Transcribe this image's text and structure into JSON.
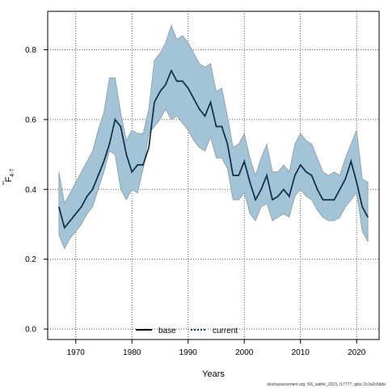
{
  "chart_data": {
    "type": "line",
    "title": "",
    "xlabel": "Years",
    "ylabel": "F",
    "ylabel_subscript": "4-7",
    "xlim": [
      1965,
      2024
    ],
    "ylim": [
      -0.03,
      0.91
    ],
    "x_ticks": [
      1970,
      1980,
      1990,
      2000,
      2010,
      2020
    ],
    "y_ticks": [
      0.0,
      0.2,
      0.4,
      0.6,
      0.8
    ],
    "y_tick_labels": [
      "0.0",
      "0.2",
      "0.4",
      "0.6",
      "0.8"
    ],
    "grid": true,
    "legend_placement": "bottom-center",
    "x": [
      1967,
      1968,
      1969,
      1970,
      1971,
      1972,
      1973,
      1974,
      1975,
      1976,
      1977,
      1978,
      1979,
      1980,
      1981,
      1982,
      1983,
      1984,
      1985,
      1986,
      1987,
      1988,
      1989,
      1990,
      1991,
      1992,
      1993,
      1994,
      1995,
      1996,
      1997,
      1998,
      1999,
      2000,
      2001,
      2002,
      2003,
      2004,
      2005,
      2006,
      2007,
      2008,
      2009,
      2010,
      2011,
      2012,
      2013,
      2014,
      2015,
      2016,
      2017,
      2018,
      2019,
      2020,
      2021,
      2022
    ],
    "series": [
      {
        "name": "base",
        "style": "solid",
        "color": "#000000",
        "values": [
          0.35,
          0.29,
          0.31,
          0.33,
          0.35,
          0.38,
          0.4,
          0.44,
          0.48,
          0.53,
          0.6,
          0.58,
          0.5,
          0.45,
          0.47,
          0.47,
          0.52,
          0.65,
          0.68,
          0.7,
          0.74,
          0.71,
          0.71,
          0.69,
          0.66,
          0.63,
          0.61,
          0.65,
          0.58,
          0.58,
          0.53,
          0.44,
          0.44,
          0.48,
          0.42,
          0.37,
          0.4,
          0.44,
          0.37,
          0.38,
          0.4,
          0.38,
          0.44,
          0.47,
          0.45,
          0.44,
          0.4,
          0.37,
          0.37,
          0.37,
          0.4,
          0.43,
          0.48,
          0.42,
          0.35,
          0.32
        ]
      },
      {
        "name": "current",
        "style": "dotted",
        "color": "#0b4a73",
        "values": [
          0.35,
          0.29,
          0.31,
          0.33,
          0.35,
          0.38,
          0.4,
          0.44,
          0.48,
          0.53,
          0.6,
          0.58,
          0.5,
          0.45,
          0.47,
          0.47,
          0.52,
          0.65,
          0.68,
          0.7,
          0.74,
          0.71,
          0.71,
          0.69,
          0.66,
          0.63,
          0.61,
          0.65,
          0.58,
          0.58,
          0.53,
          0.44,
          0.44,
          0.48,
          0.42,
          0.37,
          0.4,
          0.44,
          0.37,
          0.38,
          0.4,
          0.38,
          0.44,
          0.47,
          0.45,
          0.44,
          0.4,
          0.37,
          0.37,
          0.37,
          0.4,
          0.43,
          0.48,
          0.42,
          0.35,
          0.32
        ]
      }
    ],
    "confidence_band": {
      "color": "#a3c3d6",
      "edge_color": "#8a9aa6",
      "upper": [
        0.45,
        0.36,
        0.39,
        0.42,
        0.45,
        0.48,
        0.51,
        0.57,
        0.62,
        0.72,
        0.72,
        0.62,
        0.54,
        0.57,
        0.56,
        0.56,
        0.63,
        0.77,
        0.79,
        0.82,
        0.87,
        0.83,
        0.84,
        0.82,
        0.79,
        0.76,
        0.75,
        0.76,
        0.68,
        0.69,
        0.61,
        0.52,
        0.53,
        0.56,
        0.49,
        0.44,
        0.49,
        0.53,
        0.45,
        0.45,
        0.47,
        0.45,
        0.53,
        0.56,
        0.54,
        0.53,
        0.49,
        0.45,
        0.44,
        0.45,
        0.44,
        0.49,
        0.53,
        0.57,
        0.43,
        0.42
      ],
      "lower": [
        0.27,
        0.23,
        0.26,
        0.28,
        0.3,
        0.33,
        0.35,
        0.4,
        0.45,
        0.51,
        0.5,
        0.4,
        0.37,
        0.4,
        0.39,
        0.46,
        0.56,
        0.58,
        0.6,
        0.63,
        0.6,
        0.61,
        0.59,
        0.57,
        0.54,
        0.52,
        0.51,
        0.55,
        0.49,
        0.49,
        0.46,
        0.37,
        0.37,
        0.39,
        0.33,
        0.31,
        0.35,
        0.36,
        0.31,
        0.32,
        0.33,
        0.32,
        0.38,
        0.4,
        0.38,
        0.37,
        0.34,
        0.32,
        0.31,
        0.31,
        0.32,
        0.35,
        0.37,
        0.39,
        0.28,
        0.25
      ]
    }
  },
  "footnote": "stockassessment.org, NS_saithe_2023, r17777, gitsc:2c2a0c6dde"
}
